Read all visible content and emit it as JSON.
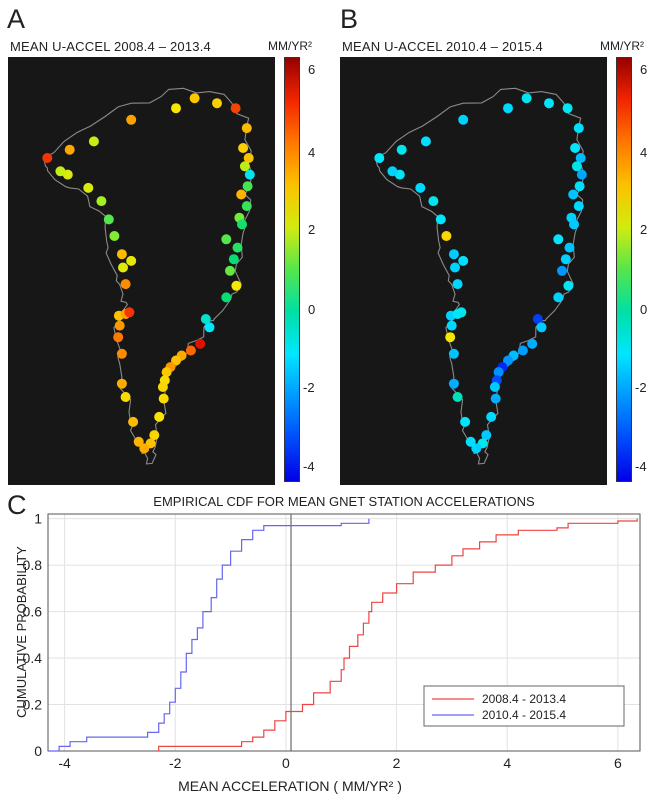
{
  "panels": {
    "a": {
      "letter": "A",
      "title": "MEAN U-ACCEL 2008.4 – 2013.4",
      "unit": "MM/YR²",
      "stations": [
        {
          "lat": 78.2,
          "lon": -72.5,
          "v": 5.2
        },
        {
          "lat": 78.7,
          "lon": -66.5,
          "v": 3.6
        },
        {
          "lat": 79.2,
          "lon": -60,
          "v": 2.0
        },
        {
          "lat": 80.5,
          "lon": -50,
          "v": 3.7
        },
        {
          "lat": 81.2,
          "lon": -38,
          "v": 2.6
        },
        {
          "lat": 81.8,
          "lon": -33,
          "v": 3.1
        },
        {
          "lat": 81.5,
          "lon": -27,
          "v": 3.0
        },
        {
          "lat": 81.2,
          "lon": -22,
          "v": 5.0
        },
        {
          "lat": 80.0,
          "lon": -19,
          "v": 3.3
        },
        {
          "lat": 78.8,
          "lon": -20,
          "v": 3.0
        },
        {
          "lat": 78.2,
          "lon": -18.5,
          "v": 3.2
        },
        {
          "lat": 77.7,
          "lon": -19.5,
          "v": 1.8
        },
        {
          "lat": 77.2,
          "lon": -18.2,
          "v": -1.0
        },
        {
          "lat": 76.5,
          "lon": -18.8,
          "v": 0.9
        },
        {
          "lat": 76.0,
          "lon": -20.5,
          "v": 3.4
        },
        {
          "lat": 75.3,
          "lon": -19,
          "v": 0.8
        },
        {
          "lat": 74.6,
          "lon": -21,
          "v": 1.2
        },
        {
          "lat": 74.2,
          "lon": -20.3,
          "v": 0.6
        },
        {
          "lat": 73.3,
          "lon": -24.5,
          "v": 1.0
        },
        {
          "lat": 72.8,
          "lon": -21.5,
          "v": 0.7
        },
        {
          "lat": 72.1,
          "lon": -22.5,
          "v": 0.5
        },
        {
          "lat": 71.4,
          "lon": -23.5,
          "v": 1.1
        },
        {
          "lat": 70.5,
          "lon": -21.8,
          "v": 2.6
        },
        {
          "lat": 69.8,
          "lon": -24.5,
          "v": 0.5
        },
        {
          "lat": 68.5,
          "lon": -30,
          "v": -0.6
        },
        {
          "lat": 68.0,
          "lon": -29,
          "v": -1.2
        },
        {
          "lat": 67.0,
          "lon": -31.5,
          "v": 5.8
        },
        {
          "lat": 66.6,
          "lon": -34,
          "v": 4.5
        },
        {
          "lat": 66.3,
          "lon": -36.5,
          "v": 3.6
        },
        {
          "lat": 66.0,
          "lon": -38,
          "v": 3.2
        },
        {
          "lat": 65.6,
          "lon": -39.5,
          "v": 3.8
        },
        {
          "lat": 65.3,
          "lon": -40.5,
          "v": 3.1
        },
        {
          "lat": 64.8,
          "lon": -41,
          "v": 2.8
        },
        {
          "lat": 64.4,
          "lon": -41.5,
          "v": 2.9
        },
        {
          "lat": 63.7,
          "lon": -41.3,
          "v": 2.8
        },
        {
          "lat": 62.6,
          "lon": -42.5,
          "v": 2.7
        },
        {
          "lat": 61.5,
          "lon": -43.8,
          "v": 2.9
        },
        {
          "lat": 61.0,
          "lon": -44.8,
          "v": 3.2
        },
        {
          "lat": 60.7,
          "lon": -46.5,
          "v": 3.5
        },
        {
          "lat": 61.1,
          "lon": -48,
          "v": 3.4
        },
        {
          "lat": 62.3,
          "lon": -49.5,
          "v": 3.3
        },
        {
          "lat": 63.8,
          "lon": -51.5,
          "v": 2.8
        },
        {
          "lat": 64.6,
          "lon": -52.5,
          "v": 3.5
        },
        {
          "lat": 66.4,
          "lon": -52.5,
          "v": 4.0
        },
        {
          "lat": 67.4,
          "lon": -53.5,
          "v": 4.3
        },
        {
          "lat": 68.1,
          "lon": -53.1,
          "v": 3.8
        },
        {
          "lat": 68.7,
          "lon": -53.3,
          "v": 3.2
        },
        {
          "lat": 68.8,
          "lon": -51.5,
          "v": 3.7
        },
        {
          "lat": 68.9,
          "lon": -50.5,
          "v": 5.2
        },
        {
          "lat": 70.6,
          "lon": -51.5,
          "v": 4.0
        },
        {
          "lat": 71.6,
          "lon": -52.2,
          "v": 2.3
        },
        {
          "lat": 72.0,
          "lon": -50,
          "v": 2.4
        },
        {
          "lat": 72.4,
          "lon": -52.5,
          "v": 3.3
        },
        {
          "lat": 73.5,
          "lon": -54.5,
          "v": 1.3
        },
        {
          "lat": 74.5,
          "lon": -56,
          "v": 1.0
        },
        {
          "lat": 75.6,
          "lon": -58,
          "v": 1.5
        },
        {
          "lat": 76.4,
          "lon": -61.5,
          "v": 2.2
        },
        {
          "lat": 77.2,
          "lon": -67,
          "v": 2.2
        },
        {
          "lat": 77.4,
          "lon": -69,
          "v": 1.9
        }
      ]
    },
    "b": {
      "letter": "B",
      "title": "MEAN U-ACCEL 2010.4 – 2015.4",
      "unit": "MM/YR²",
      "stations": [
        {
          "lat": 78.2,
          "lon": -72.5,
          "v": -1.2
        },
        {
          "lat": 78.7,
          "lon": -66.5,
          "v": -1.0
        },
        {
          "lat": 79.2,
          "lon": -60,
          "v": -1.3
        },
        {
          "lat": 80.5,
          "lon": -50,
          "v": -1.5
        },
        {
          "lat": 81.2,
          "lon": -38,
          "v": -1.4
        },
        {
          "lat": 81.8,
          "lon": -33,
          "v": -1.0
        },
        {
          "lat": 81.5,
          "lon": -27,
          "v": -1.2
        },
        {
          "lat": 81.2,
          "lon": -22,
          "v": -1.1
        },
        {
          "lat": 80.0,
          "lon": -19,
          "v": -1.3
        },
        {
          "lat": 78.8,
          "lon": -20,
          "v": -1.2
        },
        {
          "lat": 78.2,
          "lon": -18.5,
          "v": -1.8
        },
        {
          "lat": 77.7,
          "lon": -19.5,
          "v": -0.9
        },
        {
          "lat": 77.2,
          "lon": -18.2,
          "v": -2.1
        },
        {
          "lat": 76.5,
          "lon": -18.8,
          "v": -1.3
        },
        {
          "lat": 76.0,
          "lon": -20.5,
          "v": -1.7
        },
        {
          "lat": 75.3,
          "lon": -19,
          "v": -1.4
        },
        {
          "lat": 74.6,
          "lon": -21,
          "v": -1.5
        },
        {
          "lat": 74.2,
          "lon": -20.3,
          "v": -1.6
        },
        {
          "lat": 73.3,
          "lon": -24.5,
          "v": -1.2
        },
        {
          "lat": 72.8,
          "lon": -21.5,
          "v": -1.7
        },
        {
          "lat": 72.1,
          "lon": -22.5,
          "v": -1.5
        },
        {
          "lat": 71.4,
          "lon": -23.5,
          "v": -2.3
        },
        {
          "lat": 70.5,
          "lon": -21.8,
          "v": -1.1
        },
        {
          "lat": 69.8,
          "lon": -24.5,
          "v": -1.5
        },
        {
          "lat": 68.5,
          "lon": -30,
          "v": -3.6
        },
        {
          "lat": 68.0,
          "lon": -29,
          "v": -1.6
        },
        {
          "lat": 67.0,
          "lon": -31.5,
          "v": -2.0
        },
        {
          "lat": 66.6,
          "lon": -34,
          "v": -2.2
        },
        {
          "lat": 66.3,
          "lon": -36.5,
          "v": -1.8
        },
        {
          "lat": 66.0,
          "lon": -38,
          "v": -2.3
        },
        {
          "lat": 65.6,
          "lon": -39.5,
          "v": -3.9
        },
        {
          "lat": 65.3,
          "lon": -40.5,
          "v": -2.4
        },
        {
          "lat": 64.8,
          "lon": -41,
          "v": -3.4
        },
        {
          "lat": 64.4,
          "lon": -41.5,
          "v": -1.6
        },
        {
          "lat": 63.7,
          "lon": -41.3,
          "v": -2.0
        },
        {
          "lat": 62.6,
          "lon": -42.5,
          "v": -1.4
        },
        {
          "lat": 61.5,
          "lon": -43.8,
          "v": -1.6
        },
        {
          "lat": 61.0,
          "lon": -44.8,
          "v": -1.0
        },
        {
          "lat": 60.7,
          "lon": -46.5,
          "v": -1.5
        },
        {
          "lat": 61.1,
          "lon": -48,
          "v": -1.3
        },
        {
          "lat": 62.3,
          "lon": -49.5,
          "v": -1.2
        },
        {
          "lat": 63.8,
          "lon": -51.5,
          "v": -0.4
        },
        {
          "lat": 64.6,
          "lon": -52.5,
          "v": -2.0
        },
        {
          "lat": 66.4,
          "lon": -52.5,
          "v": -1.7
        },
        {
          "lat": 67.4,
          "lon": -53.5,
          "v": 2.6
        },
        {
          "lat": 68.1,
          "lon": -53.1,
          "v": -1.4
        },
        {
          "lat": 68.7,
          "lon": -53.3,
          "v": -1.5
        },
        {
          "lat": 68.8,
          "lon": -51.5,
          "v": -1.2
        },
        {
          "lat": 68.9,
          "lon": -50.5,
          "v": -1.0
        },
        {
          "lat": 70.6,
          "lon": -51.5,
          "v": -1.4
        },
        {
          "lat": 71.6,
          "lon": -52.2,
          "v": -1.5
        },
        {
          "lat": 72.0,
          "lon": -50,
          "v": -1.3
        },
        {
          "lat": 72.4,
          "lon": -52.5,
          "v": -1.6
        },
        {
          "lat": 73.5,
          "lon": -54.5,
          "v": 2.9
        },
        {
          "lat": 74.5,
          "lon": -56,
          "v": -1.2
        },
        {
          "lat": 75.6,
          "lon": -58,
          "v": -1.0
        },
        {
          "lat": 76.4,
          "lon": -61.5,
          "v": -1.4
        },
        {
          "lat": 77.2,
          "lon": -67,
          "v": -1.1
        },
        {
          "lat": 77.4,
          "lon": -69,
          "v": -1.5
        }
      ]
    }
  },
  "colorbar": {
    "ticks": [
      "6",
      "4",
      "2",
      "0",
      "-2",
      "-4"
    ],
    "range": [
      -4.5,
      6.5
    ]
  },
  "panel_c": {
    "letter": "C"
  },
  "chart_data": {
    "type": "line",
    "title": "EMPIRICAL CDF FOR MEAN GNET STATION ACCELERATIONS",
    "xlabel": "MEAN ACCELERATION   ( MM/YR² )",
    "ylabel": "CUMULATIVE PROBABILITY",
    "xlim": [
      -4.3,
      6.4
    ],
    "ylim": [
      0,
      1.02
    ],
    "xticks": [
      "-4",
      "-2",
      "0",
      "2",
      "4",
      "6"
    ],
    "yticks": [
      "0",
      "0.2",
      "0.4",
      "0.6",
      "0.8",
      "1"
    ],
    "grid": true,
    "legend_position": "bottom-right",
    "series": [
      {
        "name": "2008.4 - 2013.4",
        "color": "#ee4444",
        "points": [
          [
            -2.3,
            0
          ],
          [
            -2.3,
            0.02
          ],
          [
            -0.8,
            0.04
          ],
          [
            -0.6,
            0.06
          ],
          [
            -0.4,
            0.09
          ],
          [
            -0.2,
            0.13
          ],
          [
            0,
            0.17
          ],
          [
            0.3,
            0.2
          ],
          [
            0.5,
            0.25
          ],
          [
            0.8,
            0.3
          ],
          [
            1,
            0.35
          ],
          [
            1.05,
            0.4
          ],
          [
            1.15,
            0.45
          ],
          [
            1.3,
            0.5
          ],
          [
            1.4,
            0.55
          ],
          [
            1.5,
            0.6
          ],
          [
            1.55,
            0.64
          ],
          [
            1.75,
            0.68
          ],
          [
            2,
            0.72
          ],
          [
            2.3,
            0.77
          ],
          [
            2.7,
            0.8
          ],
          [
            3,
            0.84
          ],
          [
            3.2,
            0.87
          ],
          [
            3.5,
            0.9
          ],
          [
            3.8,
            0.93
          ],
          [
            4.2,
            0.95
          ],
          [
            4.9,
            0.96
          ],
          [
            5.1,
            0.98
          ],
          [
            6,
            0.99
          ],
          [
            6.35,
            1
          ]
        ]
      },
      {
        "name": "2010.4 - 2015.4",
        "color": "#6666ee",
        "points": [
          [
            -4.3,
            0
          ],
          [
            -4.1,
            0.02
          ],
          [
            -3.9,
            0.04
          ],
          [
            -3.6,
            0.06
          ],
          [
            -2.5,
            0.08
          ],
          [
            -2.3,
            0.12
          ],
          [
            -2.2,
            0.16
          ],
          [
            -2.1,
            0.21
          ],
          [
            -2,
            0.27
          ],
          [
            -1.9,
            0.34
          ],
          [
            -1.8,
            0.42
          ],
          [
            -1.7,
            0.48
          ],
          [
            -1.6,
            0.53
          ],
          [
            -1.5,
            0.6
          ],
          [
            -1.35,
            0.66
          ],
          [
            -1.25,
            0.74
          ],
          [
            -1.15,
            0.8
          ],
          [
            -1,
            0.86
          ],
          [
            -0.8,
            0.91
          ],
          [
            -0.6,
            0.95
          ],
          [
            -0.4,
            0.97
          ],
          [
            1,
            0.98
          ],
          [
            1.5,
            1
          ]
        ]
      }
    ]
  }
}
